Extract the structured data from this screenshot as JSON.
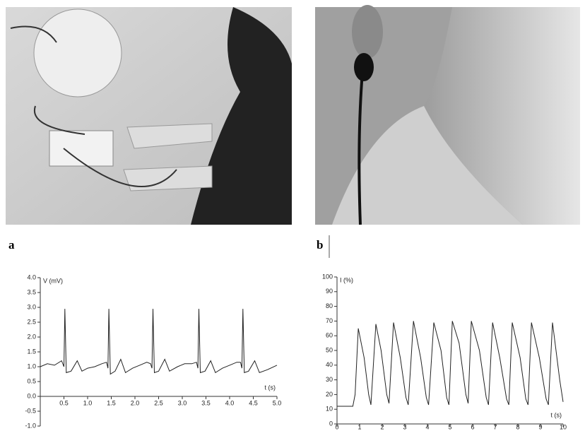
{
  "panel_labels": [
    "a",
    "b"
  ],
  "chart_data": [
    {
      "type": "line",
      "y_label": "V (mV)",
      "x_label": "t (s)",
      "color": "#222",
      "x": [
        0,
        0.15,
        0.3,
        0.45,
        0.5,
        0.52,
        0.55,
        0.65,
        0.78,
        0.88,
        1.0,
        1.15,
        1.3,
        1.4,
        1.43,
        1.45,
        1.48,
        1.58,
        1.7,
        1.8,
        1.95,
        2.1,
        2.25,
        2.33,
        2.36,
        2.38,
        2.41,
        2.5,
        2.63,
        2.73,
        2.9,
        3.05,
        3.2,
        3.3,
        3.33,
        3.35,
        3.38,
        3.48,
        3.6,
        3.7,
        3.85,
        4.0,
        4.15,
        4.23,
        4.26,
        4.28,
        4.31,
        4.4,
        4.53,
        4.63,
        4.8,
        5.0
      ],
      "values": [
        1.0,
        1.1,
        1.05,
        1.2,
        1.0,
        2.95,
        0.8,
        0.85,
        1.2,
        0.85,
        0.95,
        1.0,
        1.1,
        1.15,
        0.95,
        2.95,
        0.75,
        0.85,
        1.25,
        0.8,
        0.95,
        1.05,
        1.15,
        1.1,
        0.95,
        2.95,
        0.8,
        0.85,
        1.25,
        0.85,
        1.0,
        1.1,
        1.1,
        1.15,
        0.95,
        2.95,
        0.8,
        0.85,
        1.2,
        0.8,
        0.95,
        1.05,
        1.15,
        1.15,
        0.95,
        2.95,
        0.8,
        0.85,
        1.2,
        0.8,
        0.9,
        1.05
      ],
      "xlim": [
        0,
        5.0
      ],
      "xticks": [
        0.5,
        {
          "value": 1,
          "label": "1.0"
        },
        1.5,
        {
          "value": 2,
          "label": "2.0"
        },
        2.5,
        {
          "value": 3,
          "label": "3.0"
        },
        3.5,
        {
          "value": 4,
          "label": "4.0"
        },
        4.5,
        {
          "value": 5,
          "label": "5.0"
        }
      ],
      "ylim": [
        -1.0,
        4.0
      ],
      "yticks": [
        {
          "value": -1,
          "label": "-1.0"
        },
        -0.5,
        {
          "value": 0,
          "label": "0.0"
        },
        0.5,
        {
          "value": 1,
          "label": "1.0"
        },
        1.5,
        {
          "value": 2,
          "label": "2.0"
        },
        2.5,
        {
          "value": 3,
          "label": "3.0"
        },
        3.5,
        {
          "value": 4,
          "label": "4.0"
        }
      ]
    },
    {
      "type": "line",
      "y_label": "I (%)",
      "x_label": "t (s)",
      "color": "#222",
      "x": [
        0,
        0.7,
        0.8,
        0.94,
        1.2,
        1.4,
        1.5,
        1.72,
        1.95,
        2.2,
        2.3,
        2.5,
        2.8,
        3.05,
        3.15,
        3.38,
        3.7,
        3.95,
        4.05,
        4.28,
        4.6,
        4.85,
        4.95,
        5.1,
        5.4,
        5.7,
        5.8,
        5.94,
        6.3,
        6.6,
        6.7,
        6.88,
        7.2,
        7.5,
        7.6,
        7.75,
        8.1,
        8.35,
        8.45,
        8.6,
        8.95,
        9.25,
        9.35,
        9.53,
        9.85,
        10
      ],
      "values": [
        12,
        12,
        20,
        65,
        45,
        20,
        13,
        68,
        50,
        20,
        14,
        69,
        45,
        18,
        13,
        70,
        45,
        18,
        13,
        69,
        50,
        18,
        13,
        70,
        55,
        20,
        14,
        70,
        50,
        18,
        13,
        69,
        45,
        17,
        13,
        69,
        45,
        17,
        13,
        69,
        45,
        17,
        13,
        69,
        30,
        15
      ],
      "xlim": [
        0,
        10
      ],
      "xticks": [
        0,
        1,
        2,
        3,
        4,
        5,
        6,
        7,
        8,
        9,
        10
      ],
      "ylim": [
        0,
        100
      ],
      "yticks": [
        0,
        10,
        20,
        30,
        40,
        50,
        60,
        70,
        80,
        90,
        100
      ]
    }
  ]
}
